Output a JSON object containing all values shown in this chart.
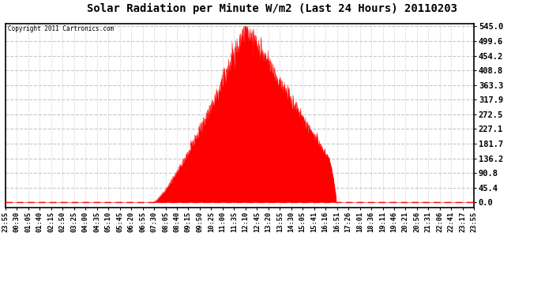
{
  "title": "Solar Radiation per Minute W/m2 (Last 24 Hours) 20110203",
  "copyright_text": "Copyright 2011 Cartronics.com",
  "fill_color": "#FF0000",
  "background_color": "#FFFFFF",
  "plot_bg_color": "#FFFFFF",
  "grid_color": "#C8C8C8",
  "baseline_color": "#FF0000",
  "yticks": [
    0.0,
    45.4,
    90.8,
    136.2,
    181.7,
    227.1,
    272.5,
    317.9,
    363.3,
    408.8,
    454.2,
    499.6,
    545.0
  ],
  "ymax": 545.0,
  "ymin": 0.0,
  "xtick_labels": [
    "23:55",
    "00:30",
    "01:05",
    "01:40",
    "02:15",
    "02:50",
    "03:25",
    "04:00",
    "04:35",
    "05:10",
    "05:45",
    "06:20",
    "06:55",
    "07:30",
    "08:05",
    "08:40",
    "09:15",
    "09:50",
    "10:25",
    "11:00",
    "11:35",
    "12:10",
    "12:45",
    "13:20",
    "13:55",
    "14:30",
    "15:05",
    "15:41",
    "16:16",
    "16:51",
    "17:26",
    "18:01",
    "18:36",
    "19:11",
    "19:46",
    "20:21",
    "20:56",
    "21:31",
    "22:06",
    "22:41",
    "23:17",
    "23:55"
  ],
  "n_points": 1440,
  "rise_min": 453,
  "peak_min": 735,
  "set_min": 1016,
  "drop_min": 995,
  "peak_value": 545.0,
  "drop_value": 130.0
}
